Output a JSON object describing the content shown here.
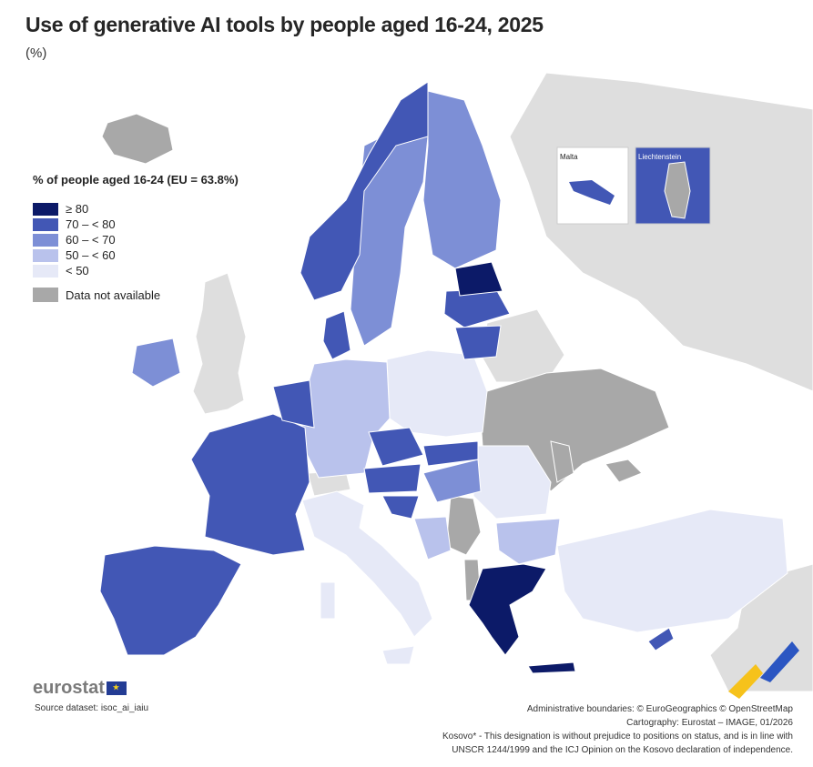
{
  "title": "Use of generative AI tools by people aged 16-24, 2025",
  "subtitle": "(%)",
  "legend": {
    "title": "% of people aged 16-24 (EU = 63.8%)",
    "classes": [
      {
        "label": "≥ 80",
        "color": "#0c1a68"
      },
      {
        "label": "70 – < 80",
        "color": "#4257b5"
      },
      {
        "label": "60 – < 70",
        "color": "#7d8fd6"
      },
      {
        "label": "50 – < 60",
        "color": "#b9c2ec"
      },
      {
        "label": "< 50",
        "color": "#e6e9f7"
      }
    ],
    "na_label": "Data not available",
    "na_color": "#a8a8a8"
  },
  "insets": {
    "malta": "Malta",
    "liechtenstein": "Liechtenstein"
  },
  "logo": "eurostat",
  "source": "Source dataset: isoc_ai_iaiu",
  "footer": {
    "line1": "Administrative boundaries: © EuroGeographics © OpenStreetMap",
    "line2": "Cartography: Eurostat – IMAGE, 01/2026",
    "line3": "Kosovo* - This designation is without prejudice to positions on status, and is in line with",
    "line4": "UNSCR 1244/1999 and the ICJ Opinion on the Kosovo declaration of independence."
  },
  "colors": {
    "sea": "#ffffff",
    "non_eu": "#dcdcdc"
  }
}
